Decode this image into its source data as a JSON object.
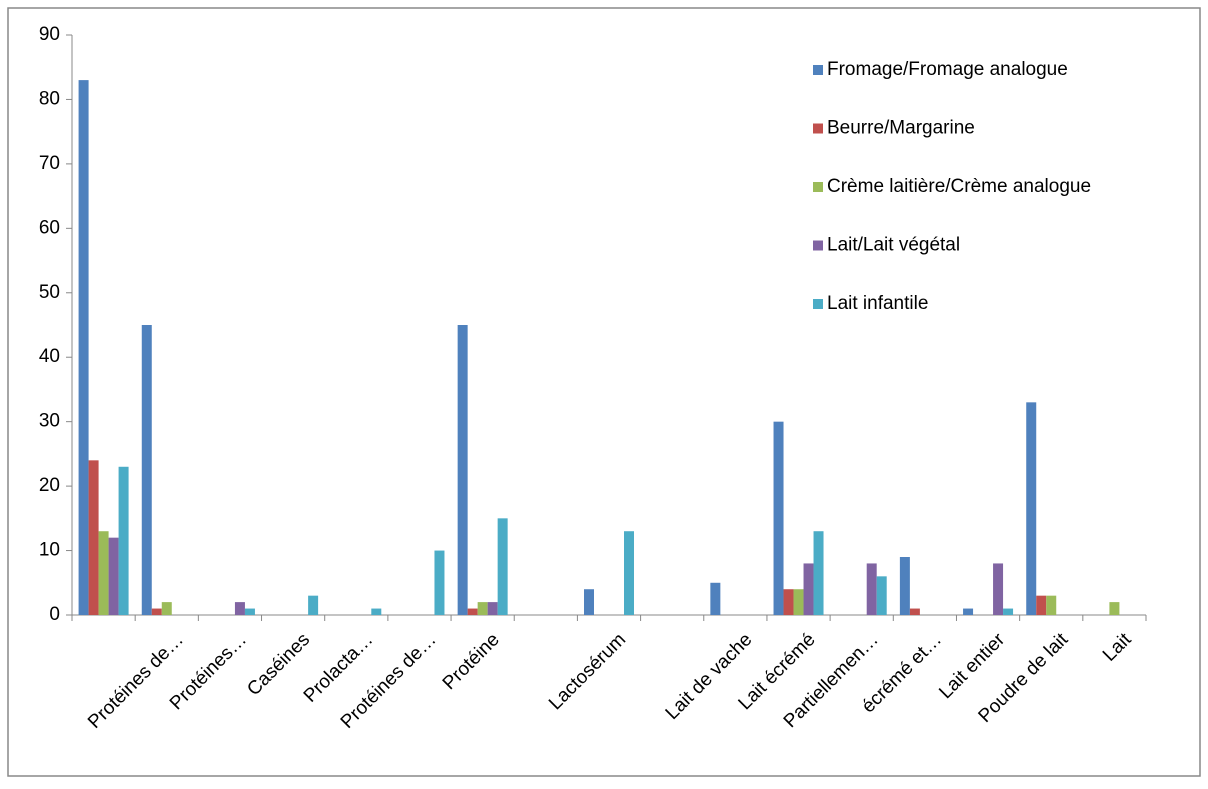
{
  "chart_data": {
    "type": "bar",
    "categories": [
      null,
      "Protéines de…",
      "Protéines…",
      "Caséines",
      "Prolacta…",
      "Protéines de…",
      "Protéine",
      null,
      "Lactosérum",
      null,
      "Lait de vache",
      "Lait écrémé",
      "Partiellemen…",
      "écrémé et…",
      "Lait entier",
      "Poudre de lait",
      "Lait"
    ],
    "series": [
      {
        "name": "Fromage/Fromage analogue",
        "color": "#4f81bd",
        "values": [
          83,
          45,
          0,
          0,
          0,
          0,
          45,
          0,
          4,
          0,
          5,
          30,
          0,
          9,
          1,
          33,
          0
        ]
      },
      {
        "name": "Beurre/Margarine",
        "color": "#c0504d",
        "values": [
          24,
          1,
          0,
          0,
          0,
          0,
          1,
          0,
          0,
          0,
          0,
          4,
          0,
          1,
          0,
          3,
          0
        ]
      },
      {
        "name": "Crème laitière/Crème analogue",
        "color": "#9bbb59",
        "values": [
          13,
          2,
          0,
          0,
          0,
          0,
          2,
          0,
          0,
          0,
          0,
          4,
          0,
          0,
          0,
          3,
          2
        ]
      },
      {
        "name": "Lait/Lait végétal",
        "color": "#8064a2",
        "values": [
          12,
          0,
          2,
          0,
          0,
          0,
          2,
          0,
          0,
          0,
          0,
          8,
          8,
          0,
          8,
          0,
          0
        ]
      },
      {
        "name": "Lait infantile",
        "color": "#4bacc6",
        "values": [
          23,
          0,
          1,
          3,
          1,
          10,
          15,
          0,
          13,
          0,
          0,
          13,
          6,
          0,
          1,
          0,
          0
        ]
      }
    ],
    "ylim": [
      0,
      90
    ],
    "yticks": [
      0,
      10,
      20,
      30,
      40,
      50,
      60,
      70,
      80,
      90
    ],
    "grid": false,
    "legend": "right"
  }
}
